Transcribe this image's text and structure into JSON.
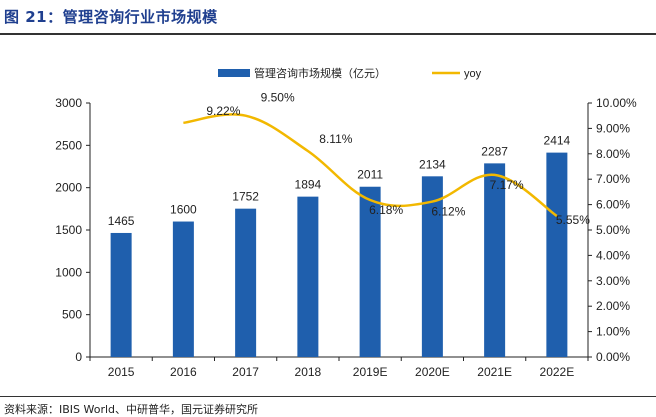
{
  "figure_title": "图 21：管理咨询行业市场规模",
  "source": "资料来源：IBIS World、中研普华，国元证券研究所",
  "colors": {
    "bar": "#1f5fad",
    "line": "#f2b800",
    "title": "#1f3f8f",
    "axis": "#222222"
  },
  "chart_data": {
    "type": "bar",
    "categories": [
      "2015",
      "2016",
      "2017",
      "2018",
      "2019E",
      "2020E",
      "2021E",
      "2022E"
    ],
    "series": [
      {
        "name": "管理咨询市场规模（亿元）",
        "type": "bar",
        "axis": "left",
        "values": [
          1465,
          1600,
          1752,
          1894,
          2011,
          2134,
          2287,
          2414
        ],
        "labels": [
          "1465",
          "1600",
          "1752",
          "1894",
          "2011",
          "2134",
          "2287",
          "2414"
        ]
      },
      {
        "name": "yoy",
        "type": "line",
        "axis": "right",
        "values": [
          null,
          9.22,
          9.5,
          8.11,
          6.18,
          6.12,
          7.17,
          5.55
        ],
        "labels": [
          "",
          "9.22%",
          "9.50%",
          "8.11%",
          "6.18%",
          "6.12%",
          "7.17%",
          "5.55%"
        ]
      }
    ],
    "y_left": {
      "ylim": [
        0,
        3000
      ],
      "ticks": [
        "0",
        "500",
        "1000",
        "1500",
        "2000",
        "2500",
        "3000"
      ]
    },
    "y_right": {
      "ylim": [
        0,
        10
      ],
      "ticks": [
        "0.00%",
        "1.00%",
        "2.00%",
        "3.00%",
        "4.00%",
        "5.00%",
        "6.00%",
        "7.00%",
        "8.00%",
        "9.00%",
        "10.00%"
      ]
    },
    "legend_position": "top-center",
    "grid": false
  }
}
